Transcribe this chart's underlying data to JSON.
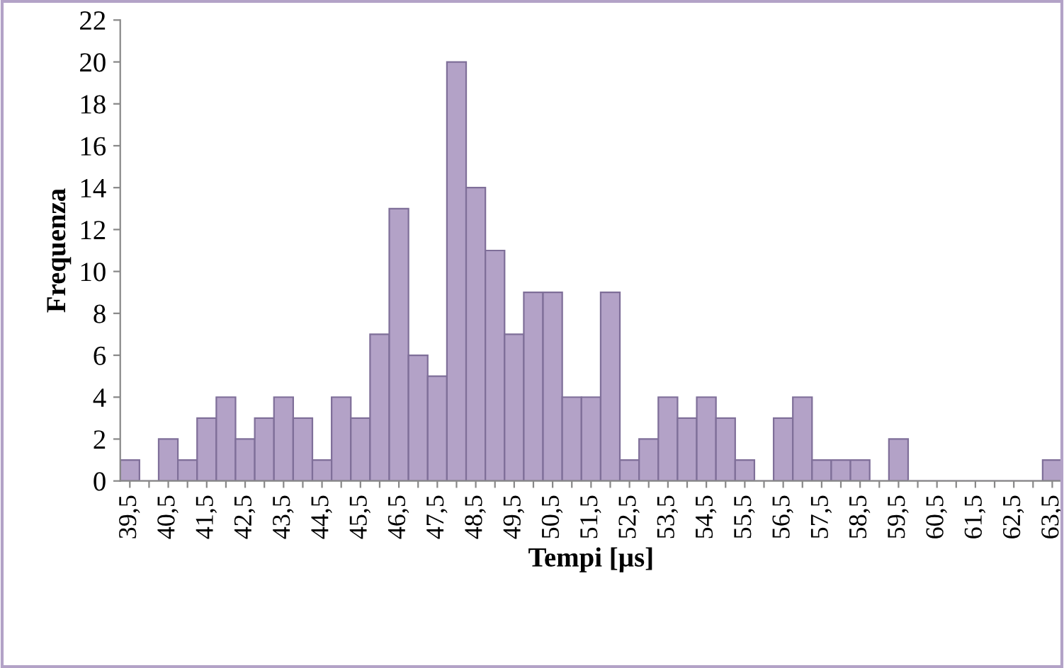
{
  "chart_data": {
    "type": "bar",
    "xlabel": "Tempi [µs]",
    "ylabel": "Frequenza",
    "categories": [
      "39,5",
      null,
      "40,5",
      null,
      "41,5",
      null,
      "42,5",
      null,
      "43,5",
      null,
      "44,5",
      null,
      "45,5",
      null,
      "46,5",
      null,
      "47,5",
      null,
      "48,5",
      null,
      "49,5",
      null,
      "50,5",
      null,
      "51,5",
      null,
      "52,5",
      null,
      "53,5",
      null,
      "54,5",
      null,
      "55,5",
      null,
      "56,5",
      null,
      "57,5",
      null,
      "58,5",
      null,
      "59,5",
      null,
      "60,5",
      null,
      "61,5",
      null,
      "62,5",
      null,
      "63,5"
    ],
    "values": [
      1,
      0,
      2,
      1,
      3,
      4,
      2,
      3,
      4,
      3,
      1,
      4,
      3,
      7,
      13,
      6,
      5,
      20,
      14,
      11,
      7,
      9,
      9,
      4,
      4,
      9,
      1,
      2,
      4,
      3,
      4,
      3,
      1,
      0,
      3,
      4,
      1,
      1,
      1,
      0,
      2,
      0,
      0,
      0,
      0,
      0,
      0,
      0,
      1
    ],
    "color": "#b3a2c7",
    "ylim": [
      0,
      22
    ],
    "yticks": [
      0,
      2,
      4,
      6,
      8,
      10,
      12,
      14,
      16,
      18,
      20,
      22
    ],
    "grid": false,
    "legend": false
  }
}
